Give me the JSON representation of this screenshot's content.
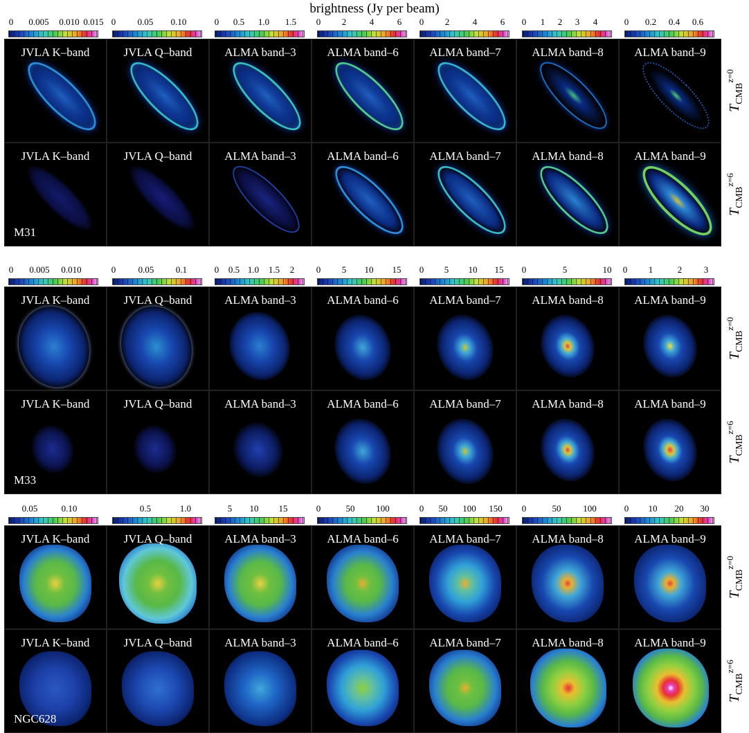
{
  "title": "brightness (Jy per beam)",
  "bands": [
    "JVLA K–band",
    "JVLA Q–band",
    "ALMA band–3",
    "ALMA band–6",
    "ALMA band–7",
    "ALMA band–8",
    "ALMA band–9"
  ],
  "row_label": {
    "T": "T",
    "sub": "CMB",
    "z0": "z=0",
    "z6": "z=6"
  },
  "galaxies": [
    {
      "name": "M31",
      "colorbars": [
        [
          "0",
          "0.005",
          "0.010",
          "0.015"
        ],
        [
          "0",
          "0.05",
          "0.10"
        ],
        [
          "0",
          "0.5",
          "1.0",
          "1.5"
        ],
        [
          "0",
          "2",
          "4",
          "6"
        ],
        [
          "0",
          "2",
          "4",
          "6"
        ],
        [
          "0",
          "1",
          "2",
          "3",
          "4"
        ],
        [
          "0",
          "0.2",
          "0.4",
          "0.6"
        ]
      ]
    },
    {
      "name": "M33",
      "colorbars": [
        [
          "0",
          "0.005",
          "0.010"
        ],
        [
          "0",
          "0.05",
          "0.1"
        ],
        [
          "0",
          "0.5",
          "1.0",
          "1.5",
          "2"
        ],
        [
          "0",
          "5",
          "10",
          "15"
        ],
        [
          "0",
          "5",
          "10",
          "15"
        ],
        [
          "0",
          "5",
          "10"
        ],
        [
          "0",
          "1",
          "2",
          "3"
        ]
      ]
    },
    {
      "name": "NGC628",
      "colorbars": [
        [
          "0.05",
          "0.10"
        ],
        [
          "0.5",
          "1.0"
        ],
        [
          "5",
          "10",
          "15"
        ],
        [
          "0",
          "50",
          "100"
        ],
        [
          "0",
          "50",
          "100",
          "150"
        ],
        [
          "0",
          "50",
          "100"
        ],
        [
          "0",
          "10",
          "20",
          "30"
        ]
      ]
    }
  ]
}
